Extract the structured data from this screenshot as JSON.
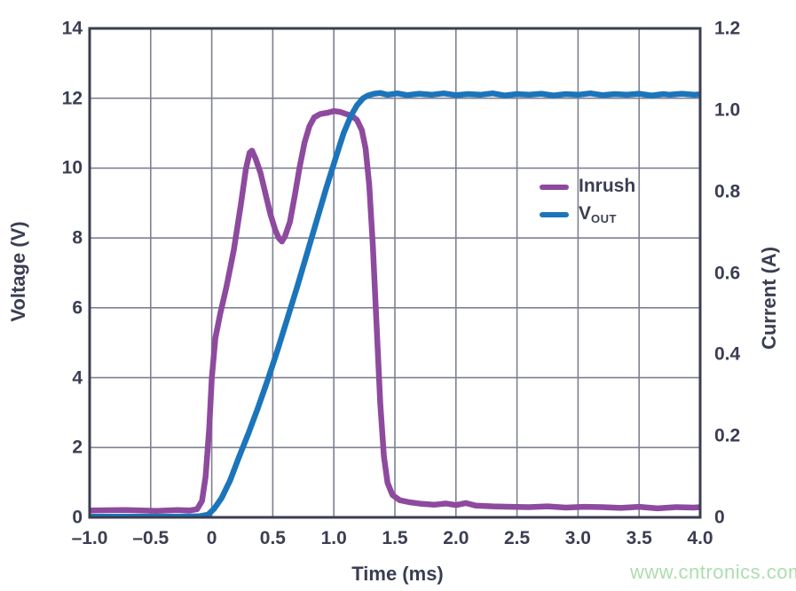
{
  "chart_data": {
    "type": "line",
    "title": "",
    "xlabel": "Time (ms)",
    "ylabel_left": "Voltage (V)",
    "ylabel_right": "Current (A)",
    "xlim": [
      -1.0,
      4.0
    ],
    "ylim_left": [
      0,
      14
    ],
    "ylim_right": [
      0,
      1.2
    ],
    "grid": true,
    "xticks": {
      "values": [
        -1.0,
        -0.5,
        0,
        0.5,
        1.0,
        1.5,
        2.0,
        2.5,
        3.0,
        3.5,
        4.0
      ],
      "labels": [
        "–1.0",
        "–0.5",
        "0",
        "0.5",
        "1.0",
        "1.5",
        "2.0",
        "2.5",
        "3.0",
        "3.5",
        "4.0"
      ]
    },
    "yticks_left": {
      "values": [
        0,
        2,
        4,
        6,
        8,
        10,
        12,
        14
      ],
      "labels": [
        "0",
        "2",
        "4",
        "6",
        "8",
        "10",
        "12",
        "14"
      ]
    },
    "yticks_right": {
      "values": [
        0,
        0.2,
        0.4,
        0.6,
        0.8,
        1.0,
        1.2
      ],
      "labels": [
        "0",
        "0.2",
        "0.4",
        "0.6",
        "0.8",
        "1.0",
        "1.2"
      ]
    },
    "legend": {
      "position": "inside-upper-right",
      "items": [
        {
          "text": "Inrush",
          "sub": "",
          "color": "#8e4a9e"
        },
        {
          "text": "V",
          "sub": "OUT",
          "color": "#1c75ba"
        }
      ]
    },
    "series": [
      {
        "name": "Inrush",
        "axis": "right",
        "unit": "A",
        "color": "#8e4a9e",
        "x": [
          -1.0,
          -0.7,
          -0.45,
          -0.28,
          -0.18,
          -0.12,
          -0.08,
          -0.05,
          -0.02,
          0.0,
          0.03,
          0.07,
          0.12,
          0.18,
          0.24,
          0.28,
          0.31,
          0.33,
          0.36,
          0.4,
          0.44,
          0.48,
          0.52,
          0.55,
          0.575,
          0.6,
          0.64,
          0.68,
          0.72,
          0.76,
          0.8,
          0.84,
          0.89,
          0.95,
          1.0,
          1.05,
          1.1,
          1.15,
          1.19,
          1.23,
          1.26,
          1.29,
          1.32,
          1.35,
          1.38,
          1.41,
          1.44,
          1.48,
          1.54,
          1.62,
          1.72,
          1.82,
          1.92,
          2.0,
          2.08,
          2.16,
          2.3,
          2.45,
          2.6,
          2.75,
          2.9,
          3.05,
          3.2,
          3.35,
          3.5,
          3.65,
          3.8,
          3.95,
          4.0
        ],
        "y": [
          0.017,
          0.018,
          0.016,
          0.018,
          0.017,
          0.02,
          0.04,
          0.1,
          0.22,
          0.34,
          0.44,
          0.5,
          0.565,
          0.655,
          0.77,
          0.855,
          0.895,
          0.9,
          0.88,
          0.845,
          0.795,
          0.745,
          0.705,
          0.685,
          0.677,
          0.69,
          0.725,
          0.79,
          0.86,
          0.92,
          0.96,
          0.982,
          0.99,
          0.993,
          0.997,
          0.995,
          0.99,
          0.985,
          0.975,
          0.95,
          0.905,
          0.815,
          0.665,
          0.47,
          0.28,
          0.15,
          0.085,
          0.055,
          0.042,
          0.037,
          0.033,
          0.031,
          0.034,
          0.03,
          0.035,
          0.029,
          0.027,
          0.026,
          0.025,
          0.027,
          0.024,
          0.026,
          0.025,
          0.023,
          0.026,
          0.022,
          0.025,
          0.024,
          0.025
        ]
      },
      {
        "name": "VOUT",
        "axis": "left",
        "unit": "V",
        "color": "#1c75ba",
        "x": [
          -1.0,
          -0.6,
          -0.3,
          -0.1,
          -0.03,
          0.02,
          0.08,
          0.15,
          0.22,
          0.3,
          0.38,
          0.46,
          0.54,
          0.62,
          0.7,
          0.78,
          0.86,
          0.94,
          1.02,
          1.08,
          1.14,
          1.19,
          1.24,
          1.28,
          1.33,
          1.38,
          1.44,
          1.52,
          1.6,
          1.7,
          1.8,
          1.9,
          2.0,
          2.1,
          2.2,
          2.3,
          2.4,
          2.5,
          2.6,
          2.7,
          2.8,
          2.9,
          3.0,
          3.1,
          3.2,
          3.3,
          3.4,
          3.5,
          3.6,
          3.7,
          3.75,
          3.85,
          3.95,
          4.0
        ],
        "y": [
          0.02,
          0.02,
          0.02,
          0.03,
          0.08,
          0.25,
          0.55,
          1.05,
          1.7,
          2.4,
          3.15,
          3.95,
          4.8,
          5.7,
          6.6,
          7.55,
          8.5,
          9.45,
          10.35,
          11.0,
          11.5,
          11.8,
          12.0,
          12.08,
          12.13,
          12.15,
          12.1,
          12.14,
          12.09,
          12.13,
          12.1,
          12.14,
          12.09,
          12.12,
          12.1,
          12.14,
          12.08,
          12.12,
          12.1,
          12.13,
          12.08,
          12.12,
          12.1,
          12.14,
          12.09,
          12.12,
          12.1,
          12.13,
          12.08,
          12.12,
          12.1,
          12.13,
          12.1,
          12.11
        ]
      }
    ],
    "colors": {
      "frame": "#3b3e52",
      "grid": "#7e8090",
      "text": "#3b3e52",
      "background": "#ffffff"
    }
  },
  "watermark": {
    "text": "www.cntronics.com",
    "color": "#aeddae"
  }
}
